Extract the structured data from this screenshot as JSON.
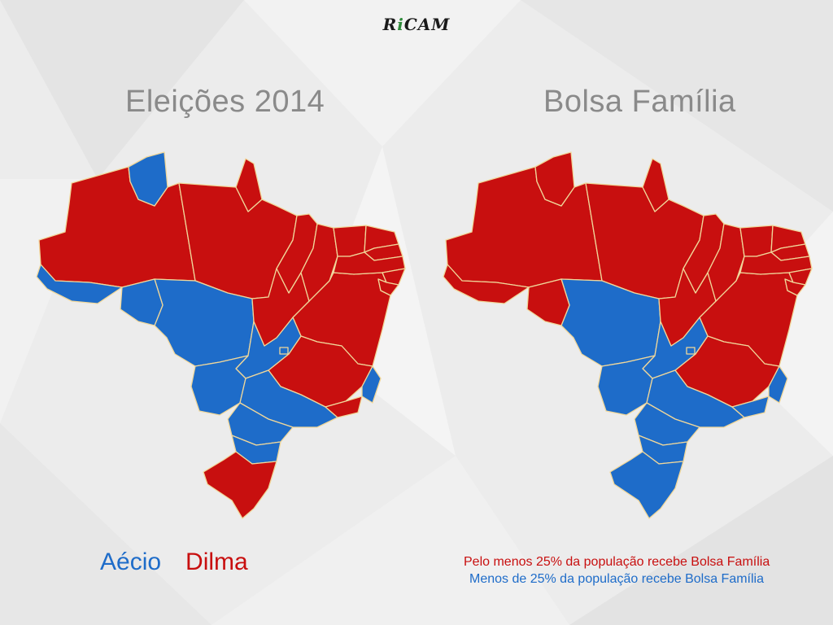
{
  "logo": {
    "part1": "R",
    "accent": "i",
    "part2": "CAM"
  },
  "left_panel": {
    "title": "Eleições 2014"
  },
  "right_panel": {
    "title": "Bolsa Família"
  },
  "legend_left": {
    "aecio": "Aécio",
    "dilma": "Dilma"
  },
  "legend_right": {
    "red_label": "Pelo menos 25% da população recebe Bolsa Família",
    "blue_label": "Menos de 25% da população recebe Bolsa Família"
  },
  "colors": {
    "red": "#c80f0f",
    "blue": "#1e6cc9",
    "border": "#f0d79a",
    "background": "#ececec",
    "title": "#8a8a8a"
  },
  "map_left": {
    "AC": "blue",
    "AM": "red",
    "RR": "blue",
    "PA": "red",
    "AP": "red",
    "MA": "red",
    "PI": "red",
    "CE": "red",
    "RN": "red",
    "PB": "red",
    "PE": "red",
    "AL": "red",
    "SE": "red",
    "BA": "red",
    "TO": "red",
    "RO": "blue",
    "MT": "blue",
    "GO": "blue",
    "DF": "blue",
    "MS": "blue",
    "MG": "red",
    "ES": "blue",
    "RJ": "red",
    "SP": "blue",
    "PR": "blue",
    "SC": "blue",
    "RS": "red"
  },
  "map_right": {
    "AC": "red",
    "AM": "red",
    "RR": "red",
    "PA": "red",
    "AP": "red",
    "MA": "red",
    "PI": "red",
    "CE": "red",
    "RN": "red",
    "PB": "red",
    "PE": "red",
    "AL": "red",
    "SE": "red",
    "BA": "red",
    "TO": "red",
    "RO": "red",
    "MT": "blue",
    "GO": "blue",
    "DF": "blue",
    "MS": "blue",
    "MG": "red",
    "ES": "blue",
    "RJ": "blue",
    "SP": "blue",
    "PR": "blue",
    "SC": "blue",
    "RS": "blue"
  }
}
